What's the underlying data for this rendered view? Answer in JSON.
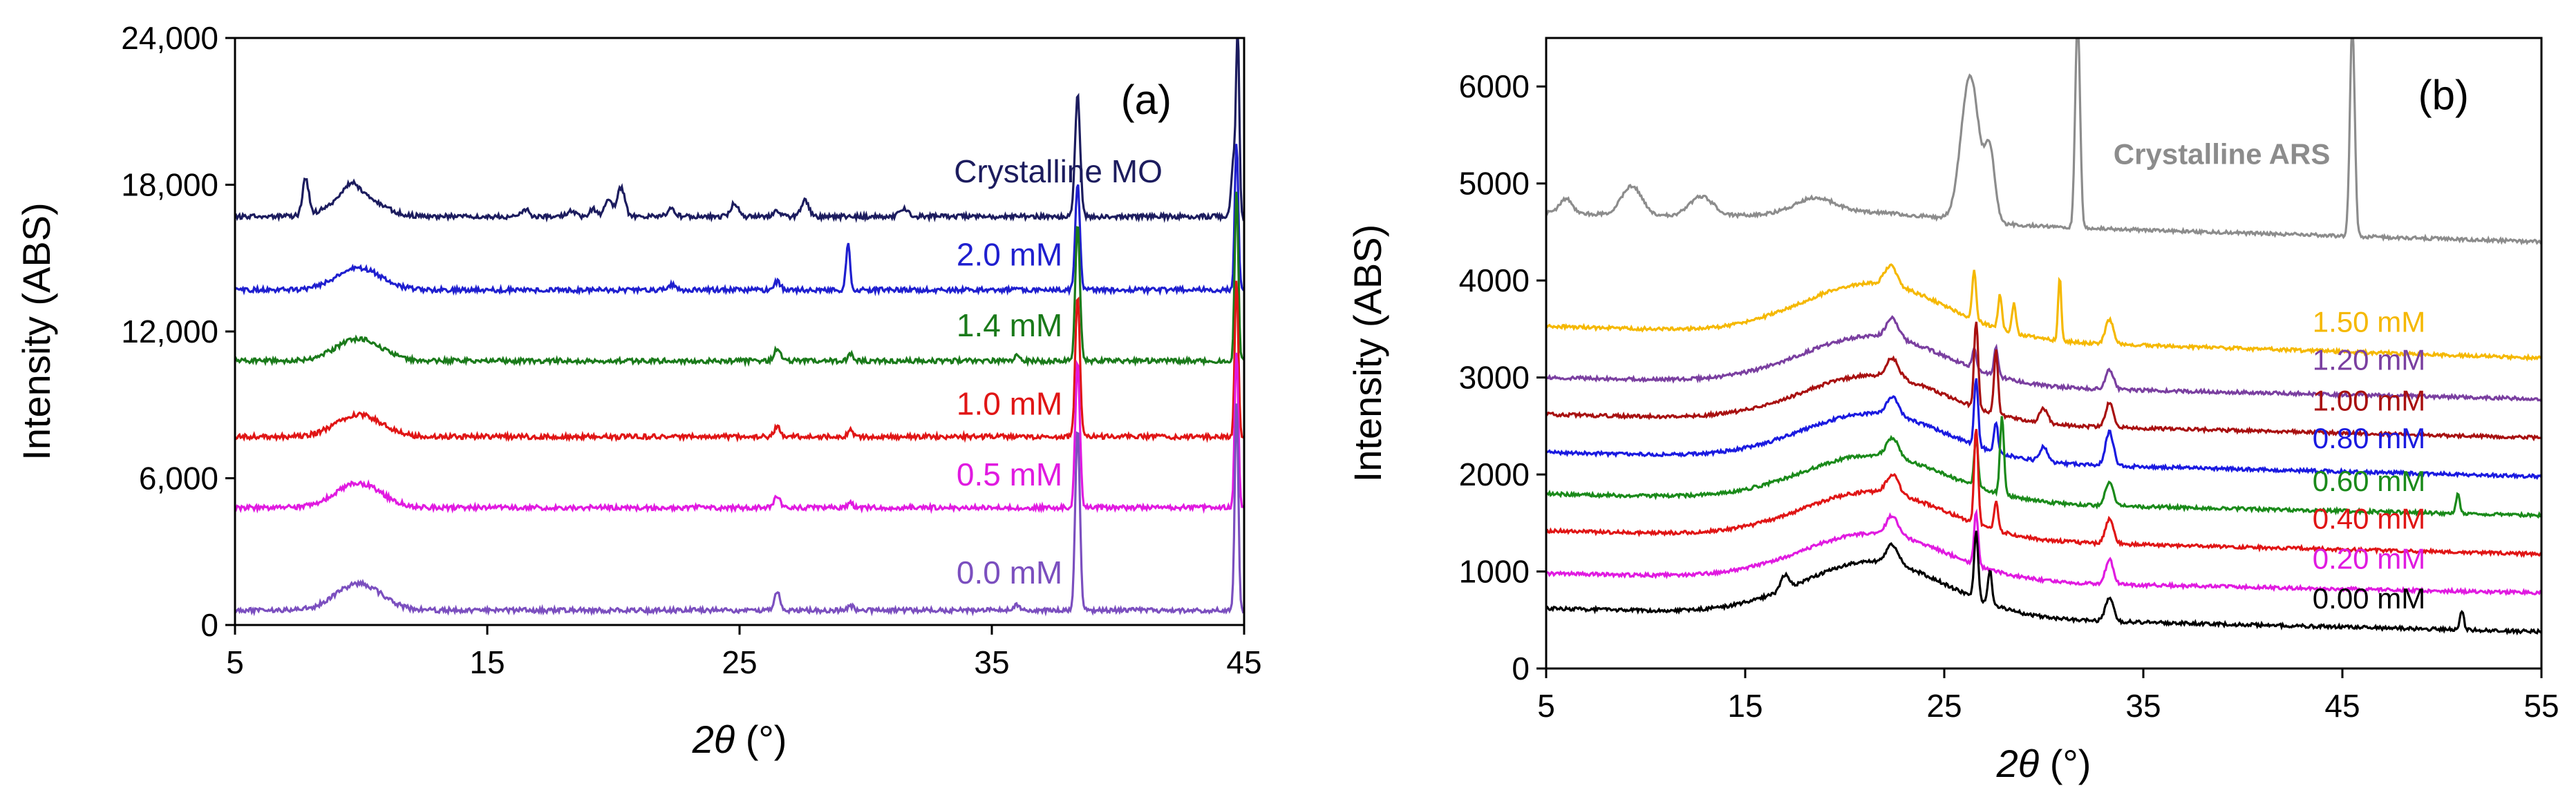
{
  "chart_data": [
    {
      "type": "line",
      "panel_label": "(a)",
      "xlabel_symbol": "2θ",
      "xlabel_unit": " (°)",
      "ylabel": "Intensity (ABS)",
      "xlim": [
        5,
        45
      ],
      "ylim": [
        0,
        24000
      ],
      "x_ticks": [
        5,
        15,
        25,
        35,
        45
      ],
      "x_tick_labels": [
        "5",
        "15",
        "25",
        "35",
        "45"
      ],
      "y_ticks": [
        0,
        6000,
        12000,
        18000,
        24000
      ],
      "y_tick_labels": [
        "0",
        "6,000",
        "12,000",
        "18,000",
        "24,000"
      ],
      "series": [
        {
          "name": "Crystalline MO",
          "label": "Crystalline MO",
          "color": "#1c1c5e",
          "baseline": 16700,
          "label_x": 33.5,
          "label_y": 18100,
          "hump": {
            "x": 9.8,
            "amp": 900,
            "width": 0.9
          },
          "peaks": [
            [
              7.8,
              1500,
              0.12
            ],
            [
              9.6,
              500,
              0.3
            ],
            [
              16.5,
              300,
              0.15
            ],
            [
              18.3,
              250,
              0.15
            ],
            [
              19.2,
              300,
              0.15
            ],
            [
              19.8,
              700,
              0.15
            ],
            [
              20.3,
              1200,
              0.15
            ],
            [
              22.3,
              300,
              0.15
            ],
            [
              24.8,
              550,
              0.15
            ],
            [
              26.5,
              200,
              0.15
            ],
            [
              27.6,
              650,
              0.15
            ],
            [
              31.5,
              350,
              0.15
            ],
            [
              38.4,
              5000,
              0.1
            ],
            [
              44.6,
              2500,
              0.1
            ],
            [
              44.75,
              7000,
              0.06
            ]
          ]
        },
        {
          "name": "2.0 mM",
          "label": "2.0 mM",
          "color": "#1f1fcf",
          "baseline": 13700,
          "label_x": 33.6,
          "label_y": 14700,
          "hump": {
            "x": 9.9,
            "amp": 900,
            "width": 0.9
          },
          "peaks": [
            [
              22.3,
              200,
              0.15
            ],
            [
              26.5,
              350,
              0.12
            ],
            [
              29.3,
              1900,
              0.08
            ],
            [
              38.4,
              4400,
              0.09
            ],
            [
              44.7,
              6000,
              0.07
            ]
          ]
        },
        {
          "name": "1.4 mM",
          "label": "1.4 mM",
          "color": "#1a7a1a",
          "baseline": 10800,
          "label_x": 33.6,
          "label_y": 11800,
          "hump": {
            "x": 9.9,
            "amp": 900,
            "width": 0.9
          },
          "peaks": [
            [
              26.5,
              500,
              0.12
            ],
            [
              29.4,
              300,
              0.1
            ],
            [
              36.0,
              300,
              0.1
            ],
            [
              38.4,
              5600,
              0.09
            ],
            [
              44.7,
              7000,
              0.07
            ]
          ]
        },
        {
          "name": "1.0 mM",
          "label": "1.0 mM",
          "color": "#e01515",
          "baseline": 7700,
          "label_x": 33.6,
          "label_y": 8600,
          "hump": {
            "x": 9.9,
            "amp": 900,
            "width": 0.9
          },
          "peaks": [
            [
              26.5,
              400,
              0.12
            ],
            [
              29.4,
              250,
              0.1
            ],
            [
              38.4,
              5800,
              0.09
            ],
            [
              44.7,
              6500,
              0.07
            ]
          ]
        },
        {
          "name": "0.5 mM",
          "label": "0.5 mM",
          "color": "#e01ae0",
          "baseline": 4800,
          "label_x": 33.6,
          "label_y": 5700,
          "hump": {
            "x": 9.9,
            "amp": 1000,
            "width": 0.9
          },
          "peaks": [
            [
              26.5,
              450,
              0.12
            ],
            [
              29.4,
              200,
              0.1
            ],
            [
              38.4,
              6000,
              0.09
            ],
            [
              44.7,
              6500,
              0.07
            ]
          ]
        },
        {
          "name": "0.0 mM",
          "label": "0.0 mM",
          "color": "#7b4fbf",
          "baseline": 600,
          "label_x": 33.6,
          "label_y": 1700,
          "hump": {
            "x": 9.9,
            "amp": 1100,
            "width": 0.9
          },
          "peaks": [
            [
              26.5,
              700,
              0.12
            ],
            [
              29.4,
              200,
              0.1
            ],
            [
              36.0,
              250,
              0.1
            ],
            [
              38.4,
              7500,
              0.09
            ],
            [
              44.7,
              8500,
              0.07
            ]
          ]
        }
      ]
    },
    {
      "type": "line",
      "panel_label": "(b)",
      "xlabel_symbol": "2θ",
      "xlabel_unit": " (°)",
      "ylabel": "Intensity (ABS)",
      "xlim": [
        5,
        55
      ],
      "ylim": [
        0,
        6500
      ],
      "x_ticks": [
        5,
        15,
        25,
        35,
        45,
        55
      ],
      "x_tick_labels": [
        "5",
        "15",
        "25",
        "35",
        "45",
        "55"
      ],
      "y_ticks": [
        0,
        1000,
        2000,
        3000,
        4000,
        5000,
        6000
      ],
      "y_tick_labels": [
        "0",
        "1000",
        "2000",
        "3000",
        "4000",
        "5000",
        "6000"
      ],
      "series": [
        {
          "name": "Crystalline ARS",
          "label": "Crystalline ARS",
          "color": "#8c8c8c",
          "baseline": 4700,
          "end": 4400,
          "label_x": 33.5,
          "label_y": 5200,
          "hump": {
            "x": 21,
            "amp": 100,
            "width": 4
          },
          "peaks": [
            [
              6.0,
              150,
              0.3
            ],
            [
              9.3,
              300,
              0.5
            ],
            [
              12.8,
              200,
              0.6
            ],
            [
              18.5,
              150,
              1.0
            ],
            [
              26.3,
              1500,
              0.45
            ],
            [
              27.3,
              700,
              0.25
            ],
            [
              31.7,
              2200,
              0.12
            ],
            [
              45.5,
              2200,
              0.12
            ]
          ]
        },
        {
          "name": "1.50 mM",
          "label": "1.50 mM",
          "color": "#f5b800",
          "baseline": 3530,
          "end": 3200,
          "label_x": 43.5,
          "label_y": 3470,
          "hump": {
            "x": 21.5,
            "amp": 550,
            "width": 3.6
          },
          "peaks": [
            [
              22.3,
              200,
              0.3
            ],
            [
              26.5,
              500,
              0.1
            ],
            [
              27.8,
              350,
              0.1
            ],
            [
              28.5,
              300,
              0.1
            ],
            [
              30.8,
              650,
              0.08
            ],
            [
              33.3,
              250,
              0.2
            ]
          ]
        },
        {
          "name": "1.20 mM",
          "label": "1.20 mM",
          "color": "#7a3fa0",
          "baseline": 3000,
          "end": 2780,
          "label_x": 43.5,
          "label_y": 3080,
          "hump": {
            "x": 21.5,
            "amp": 500,
            "width": 3.6
          },
          "peaks": [
            [
              22.4,
              200,
              0.3
            ],
            [
              26.5,
              200,
              0.1
            ],
            [
              27.6,
              300,
              0.1
            ],
            [
              33.3,
              200,
              0.2
            ]
          ]
        },
        {
          "name": "1.00 mM",
          "label": "1.00 mM",
          "color": "#a81010",
          "baseline": 2620,
          "end": 2380,
          "label_x": 43.5,
          "label_y": 2660,
          "hump": {
            "x": 21.5,
            "amp": 480,
            "width": 3.6
          },
          "peaks": [
            [
              22.4,
              200,
              0.3
            ],
            [
              26.6,
              900,
              0.1
            ],
            [
              27.6,
              650,
              0.1
            ],
            [
              30.0,
              150,
              0.2
            ],
            [
              33.3,
              250,
              0.2
            ]
          ]
        },
        {
          "name": "0.80 mM",
          "label": "0.80 mM",
          "color": "#1a1ae0",
          "baseline": 2230,
          "end": 1980,
          "label_x": 43.5,
          "label_y": 2270,
          "hump": {
            "x": 21.5,
            "amp": 480,
            "width": 3.6
          },
          "peaks": [
            [
              22.4,
              200,
              0.3
            ],
            [
              26.6,
              700,
              0.1
            ],
            [
              27.6,
              300,
              0.1
            ],
            [
              30.0,
              150,
              0.2
            ],
            [
              33.3,
              350,
              0.2
            ]
          ]
        },
        {
          "name": "0.60 mM",
          "label": "0.60 mM",
          "color": "#1a8a1a",
          "baseline": 1800,
          "end": 1580,
          "label_x": 43.5,
          "label_y": 1830,
          "hump": {
            "x": 21.5,
            "amp": 470,
            "width": 3.6
          },
          "peaks": [
            [
              22.4,
              200,
              0.3
            ],
            [
              26.6,
              500,
              0.1
            ],
            [
              27.9,
              800,
              0.1
            ],
            [
              33.3,
              250,
              0.2
            ],
            [
              50.8,
              200,
              0.1
            ]
          ]
        },
        {
          "name": "0.40 mM",
          "label": "0.40 mM",
          "color": "#e01515",
          "baseline": 1420,
          "end": 1180,
          "label_x": 43.5,
          "label_y": 1440,
          "hump": {
            "x": 21.5,
            "amp": 480,
            "width": 3.6
          },
          "peaks": [
            [
              22.4,
              200,
              0.3
            ],
            [
              26.6,
              1000,
              0.1
            ],
            [
              27.6,
              300,
              0.1
            ],
            [
              33.3,
              250,
              0.2
            ]
          ]
        },
        {
          "name": "0.20 mM",
          "label": "0.20 mM",
          "color": "#e01ae0",
          "baseline": 980,
          "end": 780,
          "label_x": 43.5,
          "label_y": 1030,
          "hump": {
            "x": 21.5,
            "amp": 480,
            "width": 3.6
          },
          "peaks": [
            [
              22.4,
              200,
              0.3
            ],
            [
              26.6,
              550,
              0.1
            ],
            [
              33.3,
              250,
              0.2
            ]
          ]
        },
        {
          "name": "0.00 mM",
          "label": "0.00 mM",
          "color": "#000000",
          "baseline": 620,
          "end": 380,
          "label_x": 43.5,
          "label_y": 620,
          "hump": {
            "x": 21.5,
            "amp": 560,
            "width": 3.6
          },
          "peaks": [
            [
              17.0,
              150,
              0.2
            ],
            [
              22.4,
              200,
              0.3
            ],
            [
              26.6,
              700,
              0.1
            ],
            [
              27.3,
              350,
              0.1
            ],
            [
              33.3,
              250,
              0.2
            ],
            [
              51.0,
              200,
              0.1
            ]
          ]
        }
      ]
    }
  ]
}
